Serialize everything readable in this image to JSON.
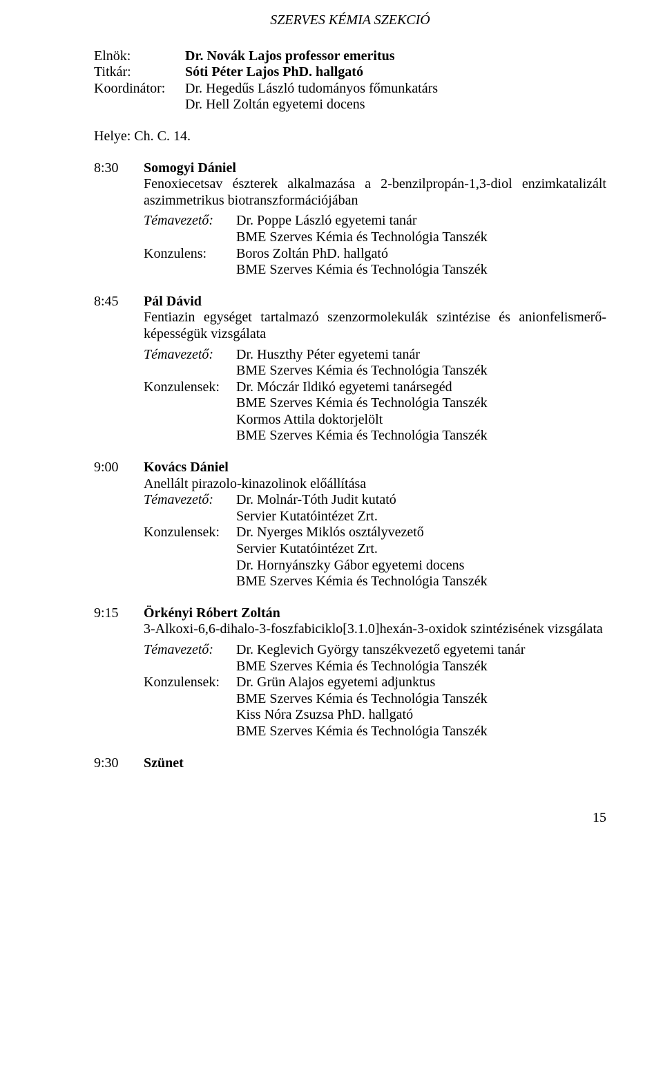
{
  "section_title": "SZERVES KÉMIA SZEKCIÓ",
  "header": {
    "roles": [
      {
        "role": "Elnök:",
        "name": "Dr. Novák Lajos professor emeritus",
        "bold": true
      },
      {
        "role": "Titkár:",
        "name": "Sóti Péter Lajos PhD. hallgató",
        "bold": true
      },
      {
        "role": "Koordinátor:",
        "name": "Dr. Hegedűs László tudományos főmunkatárs",
        "bold": false
      },
      {
        "role": "",
        "name": "Dr. Hell Zoltán egyetemi docens",
        "bold": false
      }
    ]
  },
  "helye": "Helye: Ch. C. 14.",
  "dept": "BME Szerves Kémia és Technológia Tanszék",
  "entries": [
    {
      "time": "8:30",
      "presenter": "Somogyi Dániel",
      "title": "Fenoxiecetsav észterek alkalmazása a 2-benzilpropán-1,3-diol enzimkatalizált aszimmetrikus biotranszformációjában",
      "justify": true,
      "single_line": false,
      "meta_inline": false,
      "rows": [
        {
          "label": "Témavezető:",
          "italic": true,
          "lines": [
            "Dr. Poppe László egyetemi tanár",
            "@dept"
          ]
        },
        {
          "label": "Konzulens:",
          "italic": false,
          "lines": [
            "Boros Zoltán PhD. hallgató",
            "@dept"
          ]
        }
      ]
    },
    {
      "time": "8:45",
      "presenter": "Pál Dávid",
      "title": "Fentiazin egységet tartalmazó szenzormolekulák szintézise és anionfelismerő-képességük vizsgálata",
      "justify": true,
      "single_line": false,
      "meta_inline": false,
      "rows": [
        {
          "label": "Témavezető:",
          "italic": true,
          "lines": [
            "Dr. Huszthy Péter egyetemi tanár",
            "@dept"
          ]
        },
        {
          "label": "Konzulensek:",
          "italic": false,
          "lines": [
            "Dr. Móczár Ildikó egyetemi tanársegéd",
            "@dept",
            "Kormos Attila doktorjelölt",
            "@dept"
          ]
        }
      ]
    },
    {
      "time": "9:00",
      "presenter": "Kovács Dániel",
      "title": "Anellált pirazolo-kinazolinok előállítása",
      "justify": false,
      "single_line": true,
      "meta_inline": true,
      "rows": [
        {
          "label": "Témavezető:",
          "italic": true,
          "lines": [
            "Dr. Molnár-Tóth Judit kutató",
            "Servier Kutatóintézet Zrt."
          ]
        },
        {
          "label": "Konzulensek:",
          "italic": false,
          "lines": [
            "Dr. Nyerges Miklós osztályvezető",
            "Servier Kutatóintézet Zrt.",
            "Dr. Hornyánszky Gábor egyetemi docens",
            "@dept"
          ]
        }
      ]
    },
    {
      "time": "9:15",
      "presenter": "Örkényi Róbert Zoltán",
      "title": "3-Alkoxi-6,6-dihalo-3-foszfabiciklo[3.1.0]hexán-3-oxidok szintézisének vizsgálata",
      "justify": false,
      "single_line": true,
      "meta_inline": false,
      "rows": [
        {
          "label": "Témavezető:",
          "italic": true,
          "lines": [
            "Dr. Keglevich György tanszékvezető egyetemi tanár",
            "@dept"
          ]
        },
        {
          "label": "Konzulensek:",
          "italic": false,
          "lines": [
            "Dr. Grün Alajos egyetemi adjunktus",
            "@dept",
            "Kiss Nóra Zsuzsa PhD. hallgató",
            "@dept"
          ]
        }
      ]
    },
    {
      "time": "9:30",
      "presenter": "Szünet",
      "title": "",
      "justify": false,
      "single_line": true,
      "meta_inline": false,
      "rows": []
    }
  ],
  "page_number": "15"
}
